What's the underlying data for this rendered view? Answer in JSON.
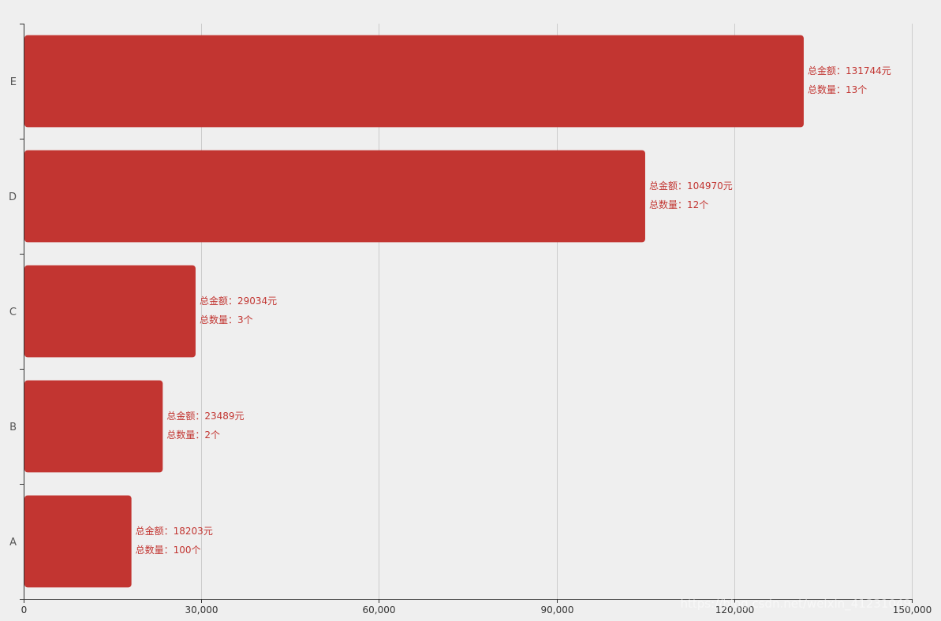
{
  "chart_data": {
    "type": "bar",
    "orientation": "horizontal",
    "categories": [
      "A",
      "B",
      "C",
      "D",
      "E"
    ],
    "series": [
      {
        "name": "总金额",
        "values": [
          18203,
          23489,
          29034,
          104970,
          131744
        ],
        "unit": "元"
      },
      {
        "name": "总数量",
        "values": [
          100,
          2,
          3,
          12,
          13
        ],
        "unit": "个"
      }
    ],
    "label_prefixes": [
      "总金额：",
      "总数量："
    ],
    "xlim": [
      0,
      150000
    ],
    "xticks": [
      0,
      30000,
      60000,
      90000,
      120000,
      150000
    ],
    "xtick_labels": [
      "0",
      "30,000",
      "60,000",
      "90,000",
      "120,000",
      "150,000"
    ],
    "grid": true,
    "title": "",
    "xlabel": "",
    "ylabel": ""
  },
  "colors": {
    "bar": "#c23531",
    "label": "#c23531",
    "background": "#efefef"
  },
  "watermark": "https://blog.csdn.net/weixin_41231049"
}
